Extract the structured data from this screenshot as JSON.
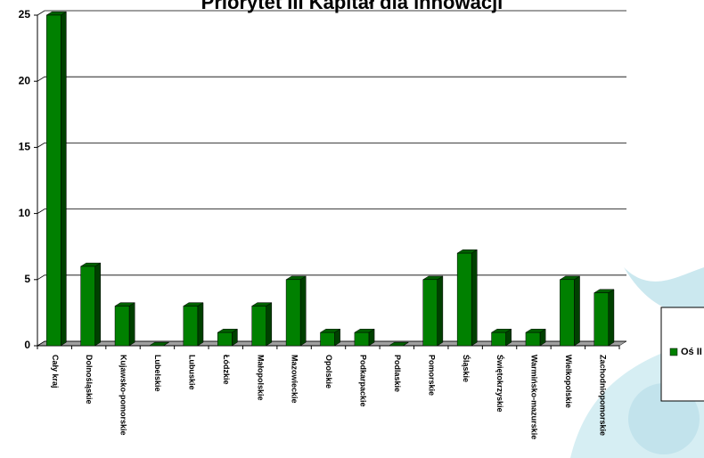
{
  "chart_data": {
    "type": "bar",
    "title": "Priorytet III Kapitał dla innowacji",
    "categories": [
      "Cały kraj",
      "Dolnośląskie",
      "Kujawsko-pomorskie",
      "Lubelskie",
      "Lubuskie",
      "Łódzkie",
      "Małopolskie",
      "Mazowieckie",
      "Opolskie",
      "Podkarpackie",
      "Podlaskie",
      "Pomorskie",
      "Śląskie",
      "Świętokrzyskie",
      "Warmińsko-mazurskie",
      "Wielkopolskie",
      "Zachodniopomorskie"
    ],
    "series": [
      {
        "name": "Oś II",
        "color": "#008000",
        "values": [
          25,
          6,
          3,
          0,
          3,
          1,
          3,
          5,
          1,
          1,
          0,
          5,
          7,
          1,
          1,
          5,
          4
        ]
      }
    ],
    "ylim": [
      0,
      25
    ],
    "yticks": [
      0,
      5,
      10,
      15,
      20,
      25
    ],
    "grid": true
  }
}
